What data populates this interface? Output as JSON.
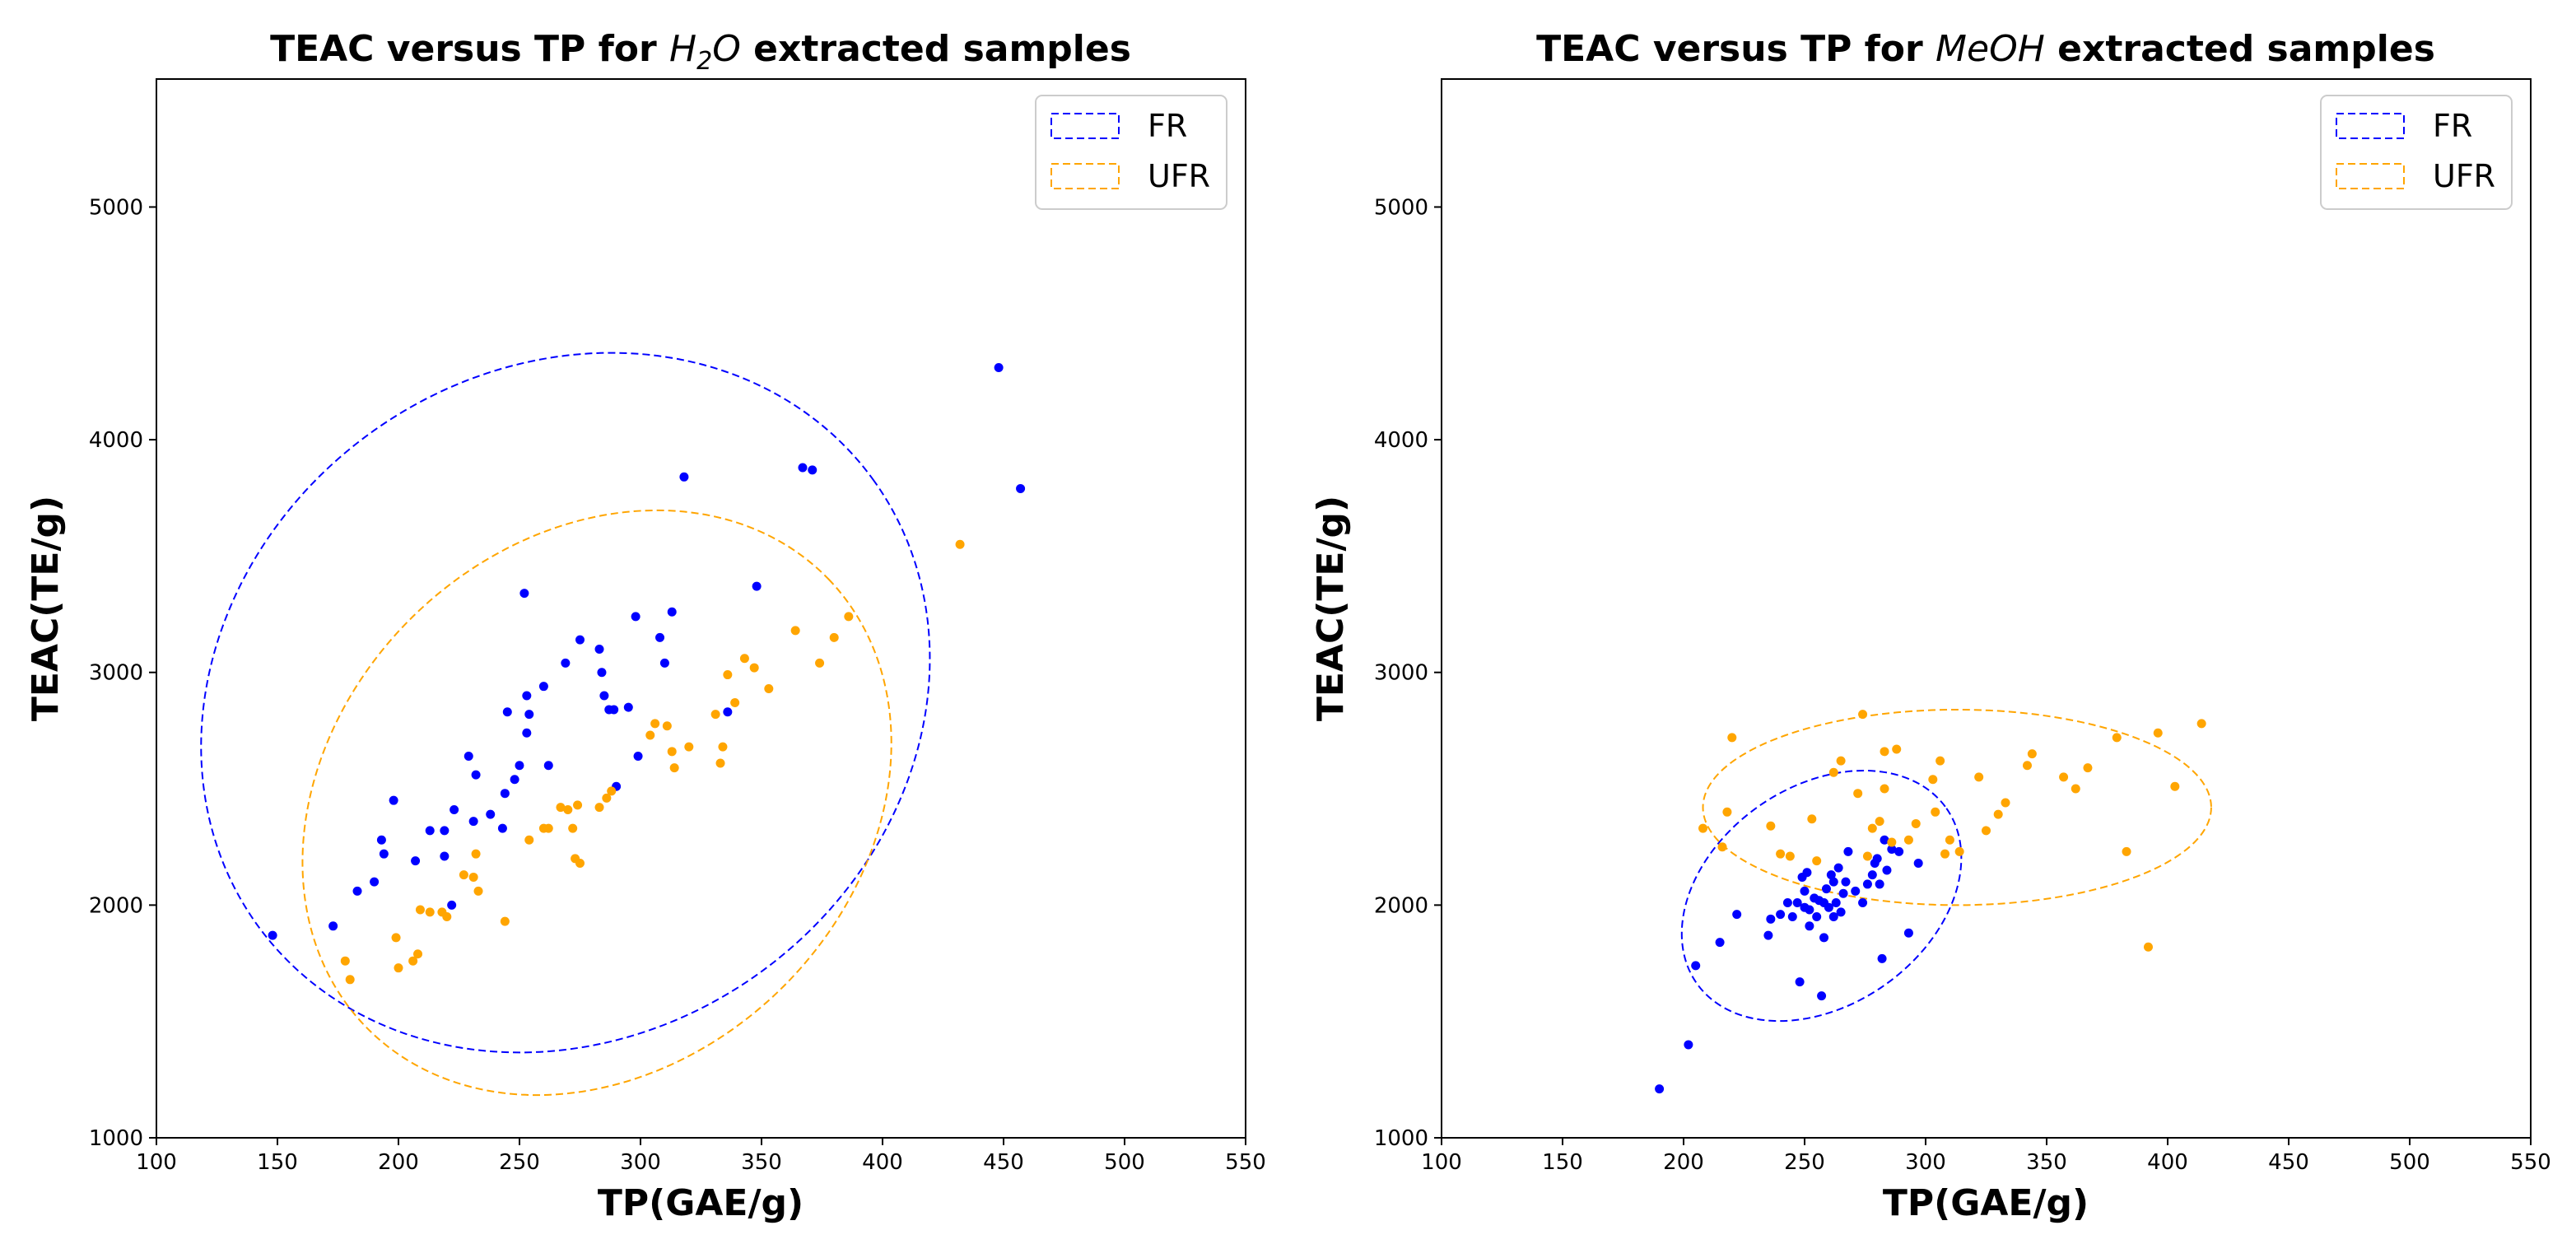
{
  "chart_data": [
    {
      "type": "scatter",
      "title_parts": [
        "TEAC versus TP for ",
        "H",
        "2",
        "O",
        " extracted samples"
      ],
      "xlabel": "TP(GAE/g)",
      "ylabel": "TEAC(TE/g)",
      "xlim": [
        100,
        550
      ],
      "ylim": [
        1000,
        5550
      ],
      "xticks": [
        "100",
        "150",
        "200",
        "250",
        "300",
        "350",
        "400",
        "450",
        "500",
        "550"
      ],
      "yticks": [
        "1000",
        "2000",
        "3000",
        "4000",
        "5000"
      ],
      "legend": {
        "position": "top-right",
        "entries": [
          "FR",
          "UFR"
        ]
      },
      "series": [
        {
          "name": "FR",
          "color": "#0000ff",
          "points": [
            [
              148,
              1870
            ],
            [
              173,
              1910
            ],
            [
              183,
              2060
            ],
            [
              190,
              2100
            ],
            [
              193,
              2280
            ],
            [
              194,
              2220
            ],
            [
              198,
              2450
            ],
            [
              207,
              2190
            ],
            [
              213,
              2320
            ],
            [
              219,
              2210
            ],
            [
              219,
              2320
            ],
            [
              222,
              2000
            ],
            [
              223,
              2410
            ],
            [
              229,
              2640
            ],
            [
              231,
              2360
            ],
            [
              232,
              2560
            ],
            [
              238,
              2390
            ],
            [
              243,
              2330
            ],
            [
              244,
              2480
            ],
            [
              245,
              2830
            ],
            [
              248,
              2540
            ],
            [
              250,
              2600
            ],
            [
              252,
              3340
            ],
            [
              253,
              2740
            ],
            [
              253,
              2900
            ],
            [
              254,
              2820
            ],
            [
              260,
              2940
            ],
            [
              262,
              2600
            ],
            [
              269,
              3040
            ],
            [
              275,
              3140
            ],
            [
              283,
              3100
            ],
            [
              284,
              3000
            ],
            [
              285,
              2900
            ],
            [
              287,
              2840
            ],
            [
              290,
              2510
            ],
            [
              289,
              2840
            ],
            [
              295,
              2850
            ],
            [
              298,
              3240
            ],
            [
              299,
              2640
            ],
            [
              308,
              3150
            ],
            [
              310,
              3040
            ],
            [
              313,
              3260
            ],
            [
              318,
              3840
            ],
            [
              336,
              2830
            ],
            [
              348,
              3370
            ],
            [
              367,
              3880
            ],
            [
              371,
              3870
            ],
            [
              448,
              4310
            ],
            [
              457,
              3790
            ]
          ]
        },
        {
          "name": "UFR",
          "color": "#ffa500",
          "points": [
            [
              178,
              1760
            ],
            [
              180,
              1680
            ],
            [
              199,
              1860
            ],
            [
              200,
              1730
            ],
            [
              206,
              1760
            ],
            [
              208,
              1790
            ],
            [
              209,
              1980
            ],
            [
              213,
              1970
            ],
            [
              218,
              1970
            ],
            [
              220,
              1950
            ],
            [
              227,
              2130
            ],
            [
              231,
              2120
            ],
            [
              232,
              2220
            ],
            [
              233,
              2060
            ],
            [
              244,
              1930
            ],
            [
              254,
              2280
            ],
            [
              260,
              2330
            ],
            [
              262,
              2330
            ],
            [
              267,
              2420
            ],
            [
              270,
              2410
            ],
            [
              272,
              2330
            ],
            [
              273,
              2200
            ],
            [
              274,
              2430
            ],
            [
              275,
              2180
            ],
            [
              283,
              2420
            ],
            [
              286,
              2460
            ],
            [
              288,
              2490
            ],
            [
              304,
              2730
            ],
            [
              306,
              2780
            ],
            [
              311,
              2770
            ],
            [
              313,
              2660
            ],
            [
              314,
              2590
            ],
            [
              320,
              2680
            ],
            [
              331,
              2820
            ],
            [
              333,
              2610
            ],
            [
              334,
              2680
            ],
            [
              336,
              2990
            ],
            [
              339,
              2870
            ],
            [
              343,
              3060
            ],
            [
              347,
              3020
            ],
            [
              353,
              2930
            ],
            [
              364,
              3180
            ],
            [
              374,
              3040
            ],
            [
              380,
              3150
            ],
            [
              386,
              3240
            ],
            [
              432,
              3550
            ]
          ]
        }
      ],
      "ellipses": [
        {
          "name": "FR",
          "color": "#0000ff",
          "cx": 269,
          "cy": 2870,
          "rx_data": 157,
          "ry_data": 1430,
          "rotation_deg": 36
        },
        {
          "name": "UFR",
          "color": "#ffa500",
          "cx": 282,
          "cy": 2440,
          "rx_data": 133,
          "ry_data": 1125,
          "rotation_deg": 44
        }
      ]
    },
    {
      "type": "scatter",
      "title_parts": [
        "TEAC versus TP for ",
        "MeOH",
        "",
        "",
        " extracted samples"
      ],
      "xlabel": "TP(GAE/g)",
      "ylabel": "TEAC(TE/g)",
      "xlim": [
        100,
        550
      ],
      "ylim": [
        1000,
        5550
      ],
      "xticks": [
        "100",
        "150",
        "200",
        "250",
        "300",
        "350",
        "400",
        "450",
        "500",
        "550"
      ],
      "yticks": [
        "1000",
        "2000",
        "3000",
        "4000",
        "5000"
      ],
      "legend": {
        "position": "top-right",
        "entries": [
          "FR",
          "UFR"
        ]
      },
      "series": [
        {
          "name": "FR",
          "color": "#0000ff",
          "points": [
            [
              190,
              1210
            ],
            [
              202,
              1400
            ],
            [
              205,
              1740
            ],
            [
              215,
              1840
            ],
            [
              222,
              1960
            ],
            [
              235,
              1870
            ],
            [
              236,
              1940
            ],
            [
              240,
              1960
            ],
            [
              243,
              2010
            ],
            [
              245,
              1950
            ],
            [
              247,
              2010
            ],
            [
              248,
              1670
            ],
            [
              249,
              2120
            ],
            [
              250,
              1990
            ],
            [
              250,
              2060
            ],
            [
              251,
              2140
            ],
            [
              252,
              1910
            ],
            [
              252,
              1980
            ],
            [
              254,
              2030
            ],
            [
              255,
              1950
            ],
            [
              256,
              2020
            ],
            [
              257,
              1610
            ],
            [
              258,
              1860
            ],
            [
              258,
              2010
            ],
            [
              259,
              2070
            ],
            [
              260,
              1990
            ],
            [
              261,
              2130
            ],
            [
              262,
              1950
            ],
            [
              262,
              2100
            ],
            [
              263,
              2010
            ],
            [
              264,
              2160
            ],
            [
              265,
              1970
            ],
            [
              266,
              2050
            ],
            [
              267,
              2100
            ],
            [
              268,
              2230
            ],
            [
              271,
              2060
            ],
            [
              274,
              2010
            ],
            [
              276,
              2090
            ],
            [
              278,
              2130
            ],
            [
              279,
              2180
            ],
            [
              280,
              2200
            ],
            [
              281,
              2090
            ],
            [
              282,
              1770
            ],
            [
              283,
              2280
            ],
            [
              284,
              2150
            ],
            [
              286,
              2240
            ],
            [
              289,
              2230
            ],
            [
              293,
              1880
            ],
            [
              297,
              2180
            ]
          ]
        },
        {
          "name": "UFR",
          "color": "#ffa500",
          "points": [
            [
              208,
              2330
            ],
            [
              216,
              2250
            ],
            [
              218,
              2400
            ],
            [
              220,
              2720
            ],
            [
              236,
              2340
            ],
            [
              240,
              2220
            ],
            [
              244,
              2210
            ],
            [
              253,
              2370
            ],
            [
              255,
              2190
            ],
            [
              262,
              2570
            ],
            [
              265,
              2620
            ],
            [
              272,
              2480
            ],
            [
              274,
              2820
            ],
            [
              276,
              2210
            ],
            [
              278,
              2330
            ],
            [
              281,
              2360
            ],
            [
              283,
              2500
            ],
            [
              283,
              2660
            ],
            [
              286,
              2270
            ],
            [
              288,
              2670
            ],
            [
              293,
              2280
            ],
            [
              296,
              2350
            ],
            [
              303,
              2540
            ],
            [
              304,
              2400
            ],
            [
              306,
              2620
            ],
            [
              308,
              2220
            ],
            [
              310,
              2280
            ],
            [
              314,
              2230
            ],
            [
              322,
              2550
            ],
            [
              325,
              2320
            ],
            [
              330,
              2390
            ],
            [
              333,
              2440
            ],
            [
              342,
              2600
            ],
            [
              344,
              2650
            ],
            [
              357,
              2550
            ],
            [
              362,
              2500
            ],
            [
              367,
              2590
            ],
            [
              379,
              2720
            ],
            [
              383,
              2230
            ],
            [
              392,
              1820
            ],
            [
              396,
              2740
            ],
            [
              403,
              2510
            ],
            [
              414,
              2780
            ]
          ]
        }
      ],
      "ellipses": [
        {
          "name": "FR",
          "color": "#0000ff",
          "cx": 257,
          "cy": 2040,
          "rx_data": 63,
          "ry_data": 470,
          "rotation_deg": 35
        },
        {
          "name": "UFR",
          "color": "#ffa500",
          "cx": 313,
          "cy": 2420,
          "rx_data": 105,
          "ry_data": 420,
          "rotation_deg": 0
        }
      ]
    }
  ]
}
